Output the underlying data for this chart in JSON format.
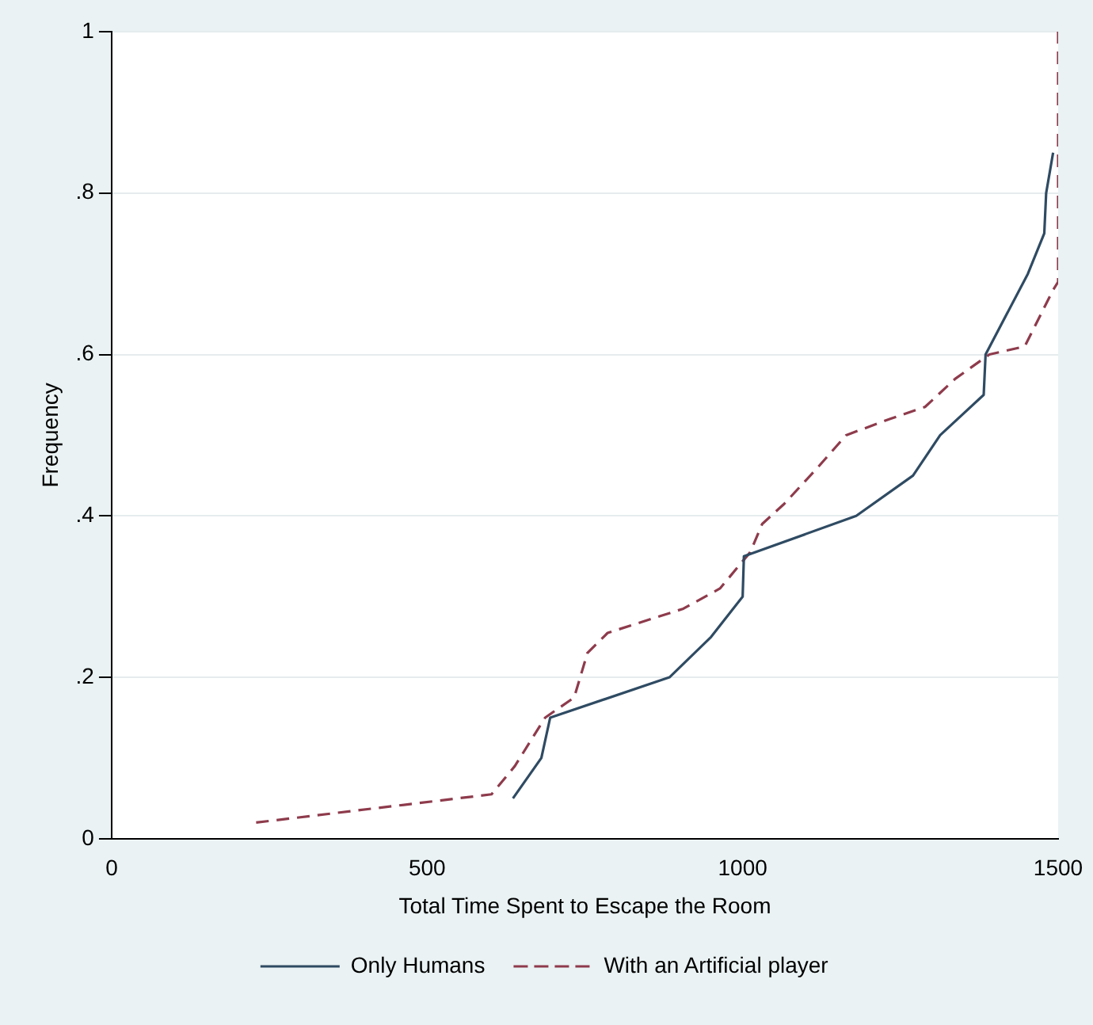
{
  "chart_data": {
    "type": "line",
    "xlabel": "Total Time Spent to Escape the Room",
    "ylabel": "Frequency",
    "xlim": [
      0,
      1500
    ],
    "xticks": [
      0,
      500,
      1000,
      1500
    ],
    "ylim": [
      0,
      1
    ],
    "yticks": [
      {
        "value": 0,
        "label": "0"
      },
      {
        "value": 0.2,
        "label": ".2"
      },
      {
        "value": 0.4,
        "label": ".4"
      },
      {
        "value": 0.6,
        "label": ".6"
      },
      {
        "value": 0.8,
        "label": ".8"
      },
      {
        "value": 1,
        "label": "1"
      }
    ],
    "grid": "y",
    "legend": "bottom",
    "marker": "none",
    "series": [
      {
        "name": "Only Humans",
        "color": "#2f4b63",
        "line_style": "solid",
        "x": [
          636,
          681,
          695,
          884,
          950,
          1000,
          1002,
          1180,
          1270,
          1313,
          1382,
          1385,
          1452,
          1478,
          1481,
          1492
        ],
        "values": [
          0.05,
          0.1,
          0.15,
          0.2,
          0.25,
          0.3,
          0.35,
          0.4,
          0.45,
          0.5,
          0.55,
          0.6,
          0.7,
          0.75,
          0.8,
          0.85
        ]
      },
      {
        "name": "With an Artificial player",
        "color": "#8e3b4c",
        "line_style": "dashed",
        "x": [
          229,
          602,
          639,
          687,
          733,
          754,
          786,
          906,
          964,
          1012,
          1031,
          1066,
          1119,
          1164,
          1233,
          1289,
          1337,
          1391,
          1447,
          1492,
          1500,
          1500
        ],
        "values": [
          0.02,
          0.055,
          0.09,
          0.15,
          0.175,
          0.23,
          0.255,
          0.285,
          0.31,
          0.355,
          0.39,
          0.415,
          0.46,
          0.5,
          0.52,
          0.535,
          0.57,
          0.6,
          0.61,
          0.68,
          0.69,
          1
        ]
      }
    ]
  }
}
